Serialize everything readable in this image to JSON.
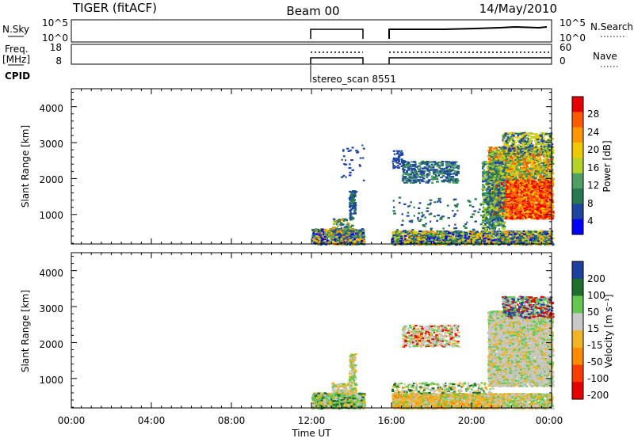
{
  "header": {
    "radar": "TIGER (fitACF)",
    "beam": "Beam 00",
    "date": "14/May/2010"
  },
  "top_panels": {
    "nsky_label": "N.Sky",
    "freq_label_1": "Freq.",
    "freq_label_2": "[MHz]",
    "cpid_label": "CPID",
    "nsearch_label": "N.Search",
    "nave_label": "Nave",
    "noise_ticks": [
      "10^5",
      "10^0"
    ],
    "noise_right_ticks": [
      "10^5",
      "10^0"
    ],
    "freq_ticks": [
      "18",
      "8"
    ],
    "nave_ticks": [
      "60",
      "0"
    ],
    "cpid_text": "stereo_scan 8551"
  },
  "power_panel": {
    "ylabel": "Slant Range [km]",
    "yticks": [
      "4000",
      "3000",
      "2000",
      "1000"
    ],
    "colorbar_label": "Power [dB]",
    "colorbar_ticks": [
      "28",
      "24",
      "20",
      "16",
      "12",
      "8",
      "4"
    ],
    "colors": [
      "#e60000",
      "#ff5a00",
      "#ff9600",
      "#f0c800",
      "#b4d228",
      "#50a064",
      "#287850",
      "#1e46a0",
      "#0000ff"
    ]
  },
  "velocity_panel": {
    "ylabel": "Slant Range [km]",
    "yticks": [
      "4000",
      "3000",
      "2000",
      "1000"
    ],
    "colorbar_label": "Velocity [m s⁻¹]",
    "colorbar_ticks": [
      "200",
      "100",
      "50",
      "15",
      "-15",
      "-50",
      "-100",
      "-200"
    ],
    "colors": [
      "#2040a0",
      "#1e6e2e",
      "#64c850",
      "#c8c8c8",
      "#f0b428",
      "#ff8c00",
      "#ff3c00",
      "#e60000"
    ]
  },
  "xaxis": {
    "label": "Time UT",
    "ticks": [
      "00:00",
      "04:00",
      "08:00",
      "12:00",
      "16:00",
      "20:00",
      "00:00"
    ]
  },
  "chart_data": {
    "type": "heatmap",
    "title": "TIGER (fitACF)",
    "subtitle": "Beam 00",
    "date": "14/May/2010",
    "x_range_hours": [
      0,
      24
    ],
    "y_range_km": [
      180,
      4500
    ],
    "data_gap_hours": [
      14.6,
      16.0
    ],
    "coverage_hours": [
      [
        12.0,
        14.6
      ],
      [
        16.0,
        24.0
      ]
    ],
    "power_db_range": [
      0,
      32
    ],
    "velocity_ms_range": [
      -250,
      250
    ],
    "regions": [
      {
        "panel": "power",
        "t": [
          12.0,
          14.6
        ],
        "r": [
          180,
          600
        ],
        "value": "8-20 dB"
      },
      {
        "panel": "power",
        "t": [
          13.8,
          14.2
        ],
        "r": [
          900,
          1700
        ],
        "value": "~8 dB"
      },
      {
        "panel": "power",
        "t": [
          16.0,
          24.0
        ],
        "r": [
          180,
          550
        ],
        "value": "8-24 dB"
      },
      {
        "panel": "power",
        "t": [
          16.5,
          19.5
        ],
        "r": [
          1900,
          2500
        ],
        "value": "~8 dB"
      },
      {
        "panel": "power",
        "t": [
          20.8,
          24.0
        ],
        "r": [
          800,
          2800
        ],
        "value": "20-28 dB"
      },
      {
        "panel": "velocity",
        "t": [
          12.0,
          14.6
        ],
        "r": [
          180,
          600
        ],
        "value": "-15 to 50 m/s"
      },
      {
        "panel": "velocity",
        "t": [
          16.0,
          21.5
        ],
        "r": [
          180,
          600
        ],
        "value": "-50 to -15 m/s"
      },
      {
        "panel": "velocity",
        "t": [
          16.5,
          19.5
        ],
        "r": [
          1900,
          2500
        ],
        "value": "-15 to 15 m/s"
      },
      {
        "panel": "velocity",
        "t": [
          20.8,
          24.0
        ],
        "r": [
          800,
          3200
        ],
        "value": "-15 to 15 m/s"
      }
    ]
  }
}
